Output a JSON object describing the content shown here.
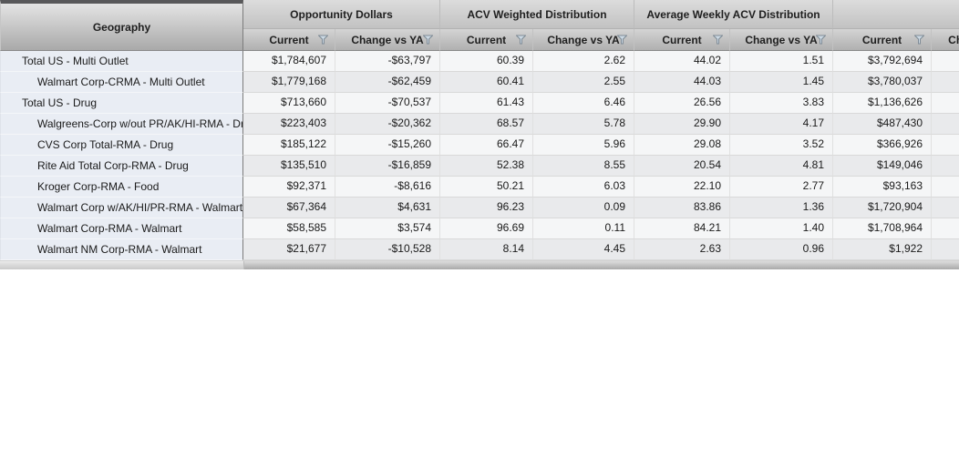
{
  "colors": {
    "geography_cell_bg": "#e9edf4",
    "row_light_bg": "#f5f6f7",
    "row_dark_bg": "#e9eaec",
    "filter_icon_fill": "#ccd9e4",
    "filter_icon_stroke": "#7f8b96",
    "header_text": "#1f1f1f"
  },
  "grid": {
    "corner_label": "Geography",
    "column_groups": [
      {
        "label": "Opportunity Dollars",
        "columns": [
          {
            "label": "Current",
            "filter": true
          },
          {
            "label": "Change vs YA",
            "filter": true
          }
        ]
      },
      {
        "label": "ACV Weighted Distribution",
        "columns": [
          {
            "label": "Current",
            "filter": true
          },
          {
            "label": "Change vs YA",
            "filter": true
          }
        ]
      },
      {
        "label": "Average Weekly ACV Distribution",
        "columns": [
          {
            "label": "Current",
            "filter": true
          },
          {
            "label": "Change vs YA",
            "filter": true
          }
        ]
      },
      {
        "label": "",
        "columns": [
          {
            "label": "Current",
            "filter": true
          },
          {
            "label": "Cha",
            "filter": false
          }
        ]
      }
    ],
    "rows": [
      {
        "geography": "Total US - Multi Outlet",
        "indent": 1,
        "values": [
          "$1,784,607",
          "-$63,797",
          "60.39",
          "2.62",
          "44.02",
          "1.51",
          "$3,792,694"
        ]
      },
      {
        "geography": "Walmart Corp-CRMA - Multi Outlet",
        "indent": 2,
        "values": [
          "$1,779,168",
          "-$62,459",
          "60.41",
          "2.55",
          "44.03",
          "1.45",
          "$3,780,037"
        ]
      },
      {
        "geography": "Total US - Drug",
        "indent": 1,
        "values": [
          "$713,660",
          "-$70,537",
          "61.43",
          "6.46",
          "26.56",
          "3.83",
          "$1,136,626"
        ]
      },
      {
        "geography": "Walgreens-Corp w/out PR/AK/HI-RMA - Drug",
        "indent": 2,
        "values": [
          "$223,403",
          "-$20,362",
          "68.57",
          "5.78",
          "29.90",
          "4.17",
          "$487,430"
        ]
      },
      {
        "geography": "CVS Corp Total-RMA - Drug",
        "indent": 2,
        "values": [
          "$185,122",
          "-$15,260",
          "66.47",
          "5.96",
          "29.08",
          "3.52",
          "$366,926"
        ]
      },
      {
        "geography": "Rite Aid Total Corp-RMA - Drug",
        "indent": 2,
        "values": [
          "$135,510",
          "-$16,859",
          "52.38",
          "8.55",
          "20.54",
          "4.81",
          "$149,046"
        ]
      },
      {
        "geography": "Kroger Corp-RMA - Food",
        "indent": 2,
        "values": [
          "$92,371",
          "-$8,616",
          "50.21",
          "6.03",
          "22.10",
          "2.77",
          "$93,163"
        ]
      },
      {
        "geography": "Walmart Corp w/AK/HI/PR-RMA - Walmart",
        "indent": 2,
        "values": [
          "$67,364",
          "$4,631",
          "96.23",
          "0.09",
          "83.86",
          "1.36",
          "$1,720,904"
        ]
      },
      {
        "geography": "Walmart Corp-RMA - Walmart",
        "indent": 2,
        "values": [
          "$58,585",
          "$3,574",
          "96.69",
          "0.11",
          "84.21",
          "1.40",
          "$1,708,964"
        ]
      },
      {
        "geography": "Walmart NM Corp-RMA - Walmart",
        "indent": 2,
        "values": [
          "$21,677",
          "-$10,528",
          "8.14",
          "4.45",
          "2.63",
          "0.96",
          "$1,922"
        ]
      }
    ]
  }
}
